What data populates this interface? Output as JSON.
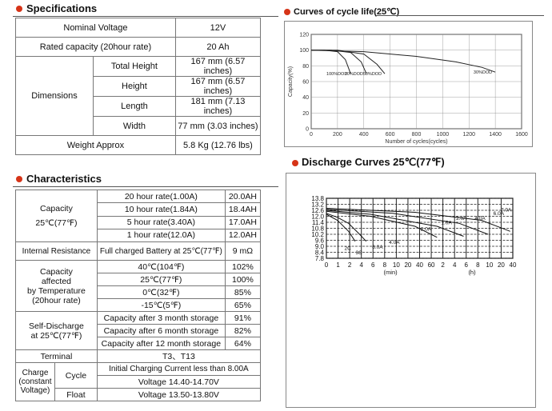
{
  "specifications": {
    "title": "Specifications",
    "nominal_voltage": {
      "label": "Nominal Voltage",
      "value": "12V"
    },
    "rated_capacity": {
      "label": "Rated capacity (20hour rate)",
      "value": "20 Ah"
    },
    "dimensions": {
      "label": "Dimensions",
      "rows": [
        {
          "label": "Total Height",
          "value": "167 mm (6.57 inches)"
        },
        {
          "label": "Height",
          "value": "167 mm (6.57 inches)"
        },
        {
          "label": "Length",
          "value": "181 mm (7.13 inches)"
        },
        {
          "label": "Width",
          "value": "77 mm (3.03 inches)"
        }
      ]
    },
    "weight": {
      "label": "Weight Approx",
      "value": "5.8 Kg (12.76 lbs)"
    }
  },
  "characteristics": {
    "title": "Characteristics",
    "capacity": {
      "label": "Capacity",
      "sub": "25℃(77℉)",
      "rows": [
        {
          "rate": "20 hour rate(1.00A)",
          "value": "20.0AH"
        },
        {
          "rate": "10 hour rate(1.84A)",
          "value": "18.4AH"
        },
        {
          "rate": "5 hour rate(3.40A)",
          "value": "17.0AH"
        },
        {
          "rate": "1 hour rate(12.0A)",
          "value": "12.0AH"
        }
      ]
    },
    "internal_resistance": {
      "label": "Internal Resistance",
      "condition": "Full charged Battery at 25℃(77℉)",
      "value": "9 mΩ"
    },
    "temperature": {
      "label": [
        "Capacity",
        "affected",
        "by Temperature",
        "(20hour rate)"
      ],
      "rows": [
        {
          "temp": "40℃(104℉)",
          "value": "102%"
        },
        {
          "temp": "25℃(77℉)",
          "value": "100%"
        },
        {
          "temp": "0℃(32℉)",
          "value": "85%"
        },
        {
          "temp": "-15℃(5℉)",
          "value": "65%"
        }
      ]
    },
    "self_discharge": {
      "label": [
        "Self-Discharge",
        "at 25℃(77℉)"
      ],
      "rows": [
        {
          "period": "Capacity after 3 month storage",
          "value": "91%"
        },
        {
          "period": "Capacity after 6 month storage",
          "value": "82%"
        },
        {
          "period": "Capacity after 12 month storage",
          "value": "64%"
        }
      ]
    },
    "terminal": {
      "label": "Terminal",
      "value": "T3、T13"
    },
    "charge": {
      "label": [
        "Charge",
        "(constant",
        "Voltage)"
      ],
      "cycle_label": "Cycle",
      "cycle_lines": [
        "Initial Charging Current less than 8.00A",
        "Voltage 14.40-14.70V"
      ],
      "float_label": "Float",
      "float_value": "Voltage 13.50-13.80V"
    }
  },
  "chart_data": [
    {
      "type": "line",
      "title": "Curves of cycle life(25℃)",
      "xlabel": "Number of cycles(cycles)",
      "ylabel": "Capacity(%)",
      "xticks": [
        "0",
        "200",
        "400",
        "600",
        "800",
        "1000",
        "1200",
        "1400",
        "1600"
      ],
      "yticks": [
        "0",
        "20",
        "40",
        "60",
        "80",
        "100",
        "120"
      ],
      "xlim": [
        0,
        1600
      ],
      "ylim": [
        0,
        120
      ],
      "grid": true,
      "series": [
        {
          "name": "100%DOD",
          "x": [
            0,
            100,
            200,
            260,
            300
          ],
          "y": [
            100,
            100,
            98,
            88,
            70
          ]
        },
        {
          "name": "70%DOD",
          "x": [
            0,
            150,
            300,
            380,
            420
          ],
          "y": [
            100,
            100,
            97,
            85,
            70
          ]
        },
        {
          "name": "50%DOD",
          "x": [
            0,
            200,
            400,
            500,
            560
          ],
          "y": [
            100,
            100,
            95,
            82,
            70
          ]
        },
        {
          "name": "30%DOD",
          "x": [
            0,
            400,
            800,
            1100,
            1300,
            1400
          ],
          "y": [
            100,
            98,
            92,
            85,
            78,
            72
          ]
        }
      ],
      "annotations": [
        "100%DOD",
        "70%DOD",
        "50%DOD",
        "30%DOD"
      ]
    },
    {
      "type": "line",
      "title": "Discharge Curves 25℃(77℉)",
      "yticks": [
        "13.8",
        "13.2",
        "12.6",
        "12.0",
        "11.4",
        "10.8",
        "10.2",
        "9.6",
        "9.0",
        "8.4",
        "7.8"
      ],
      "ylim": [
        7.8,
        13.8
      ],
      "xtick_labels": [
        "0",
        "1",
        "2",
        "4",
        "6",
        "8",
        "10",
        "20",
        "40",
        "60",
        "2",
        "4",
        "6",
        "8",
        "10",
        "20",
        "40"
      ],
      "xunit_labels": [
        "(min)",
        "(h)"
      ],
      "grid": true,
      "series": [
        {
          "name": "2C",
          "x": [
            0,
            0.5,
            1,
            1.5,
            1.8
          ],
          "y": [
            12.3,
            11.9,
            11.3,
            10.2,
            9.5
          ]
        },
        {
          "name": "3C",
          "x": [
            0,
            0.5,
            1,
            1.3
          ],
          "y": [
            12.2,
            11.6,
            10.5,
            9.5
          ]
        },
        {
          "name": "6.0A",
          "x": [
            0,
            2,
            4,
            5
          ],
          "y": [
            12.5,
            12.0,
            11.0,
            9.9
          ]
        },
        {
          "name": "4.0A",
          "x": [
            0,
            2,
            5,
            6.2
          ],
          "y": [
            12.6,
            12.2,
            11.0,
            10.0
          ]
        },
        {
          "name": "2.0A",
          "x": [
            0,
            3,
            6,
            7.3
          ],
          "y": [
            12.7,
            12.3,
            11.3,
            10.2
          ]
        },
        {
          "name": "1.0A",
          "x": [
            0,
            4,
            7,
            8.3
          ],
          "y": [
            12.8,
            12.4,
            11.6,
            10.5
          ]
        }
      ],
      "labels": [
        "2C",
        "3C",
        "6.0A",
        "4.0A",
        "2.0A",
        "1.0A",
        "2.0A",
        "4.0A",
        "6.0A",
        "7.0A"
      ]
    }
  ]
}
